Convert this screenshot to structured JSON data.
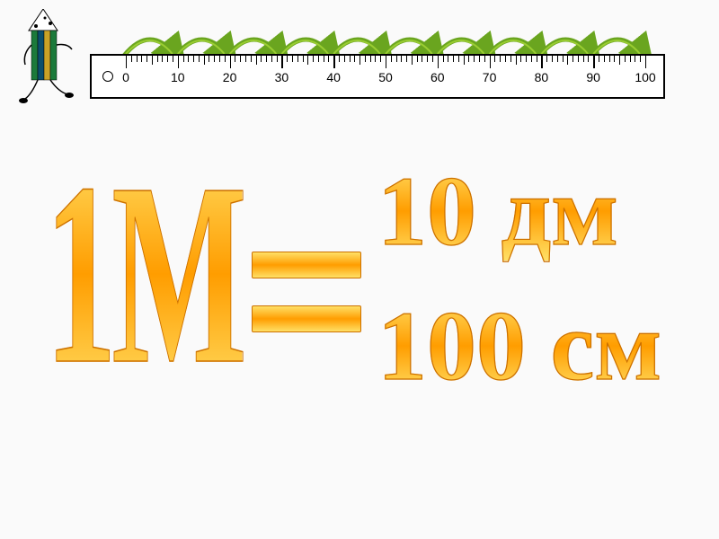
{
  "ruler": {
    "major_ticks": [
      0,
      10,
      20,
      30,
      40,
      50,
      60,
      70,
      80,
      90,
      100
    ],
    "minor_per_major": 10,
    "num_arcs": 10,
    "arc_color": "#6aa51f",
    "arc_highlight": "#9acd32"
  },
  "equation": {
    "left": "1М",
    "right_top": "10 дм",
    "right_bottom": "100 см"
  },
  "colors": {
    "gradient_top": "#ffe066",
    "gradient_mid": "#ff9d00",
    "stroke": "#cc7000"
  },
  "character": {
    "body_colors": [
      "#1b7a3a",
      "#0b4f6c",
      "#c9a227",
      "#1b7a3a"
    ],
    "hat_color": "#ffffff",
    "limb_color": "#000000"
  }
}
